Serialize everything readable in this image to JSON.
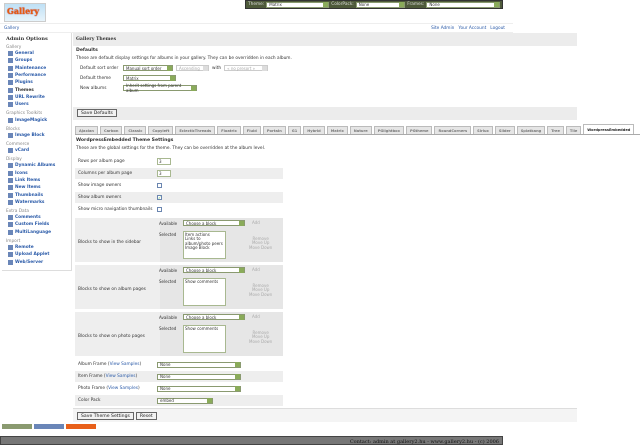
{
  "logo": "Gallery",
  "topbar": {
    "theme_label": "Theme:",
    "theme_value": "Matrix",
    "colorpack_label": "ColorPack:",
    "colorpack_value": "None",
    "frames_label": "Frames:",
    "frames_value": "None"
  },
  "breadcrumb": "Gallery",
  "toplinks": [
    "Site Admin",
    "Your Account",
    "Logout"
  ],
  "sidebar": {
    "title": "Admin Options",
    "groups": [
      {
        "name": "Gallery",
        "items": [
          "General",
          "Groups",
          "Maintenance",
          "Performance",
          "Plugins",
          "Themes",
          "URL Rewrite",
          "Users"
        ]
      },
      {
        "name": "Graphics Toolkits",
        "items": [
          "ImageMagick"
        ]
      },
      {
        "name": "Blocks",
        "items": [
          "Image Block"
        ]
      },
      {
        "name": "Commerce",
        "items": [
          "vCard"
        ]
      },
      {
        "name": "Display",
        "items": [
          "Dynamic Albums",
          "Icons",
          "Link Items",
          "New Items",
          "Thumbnails",
          "Watermarks"
        ]
      },
      {
        "name": "Extra Data",
        "items": [
          "Comments",
          "Custom Fields",
          "MultiLanguage"
        ]
      },
      {
        "name": "Import",
        "items": [
          "Remote",
          "Upload Applet",
          "Web/Server"
        ]
      }
    ],
    "current": "Themes"
  },
  "header": "Gallery Themes",
  "defaults": {
    "title": "Defaults",
    "desc": "These are default display settings for albums in your gallery. They can be overridden in each album.",
    "sort_label": "Default sort order",
    "sort_value": "Manual sort order",
    "sort_dir": "Ascending",
    "with_label": "with",
    "presort": "« no presort »",
    "theme_label": "Default theme",
    "theme_value": "Matrix",
    "new_label": "New albums",
    "new_value": "Inherit settings from parent album"
  },
  "save_defaults": "Save Defaults",
  "tabs": [
    "Ajaxian",
    "Carbon",
    "Classic",
    "Copyleft",
    "EclecticThreads",
    "Floatrix",
    "Fluid",
    "PortaIn",
    "G1",
    "Hybrid",
    "Matrix",
    "Nature",
    "PGlightbox",
    "PGtheme",
    "RoundCorners",
    "Siriux",
    "Slider",
    "Splatkang",
    "Tree",
    "Tile",
    "WordpressEmbedded"
  ],
  "active_tab": "WordpressEmbedded",
  "settings": {
    "title": "WordpressEmbedded Theme Settings",
    "desc": "These are the global settings for the theme. They can be overridden at the album level.",
    "rows_label": "Rows per album page",
    "rows_value": "3",
    "cols_label": "Columns per album page",
    "cols_value": "3",
    "image_owners": "Show image owners",
    "image_owners_checked": false,
    "album_owners": "Show album owners",
    "album_owners_checked": true,
    "micro": "Show micro navigation thumbnails",
    "micro_checked": false,
    "available": "Available",
    "selected": "Selected",
    "choose": "Choose a block",
    "add": "Add",
    "remove": "Remove",
    "up": "Move Up",
    "down": "Move Down",
    "sidebar_blocks": {
      "label": "Blocks to show in the sidebar",
      "items": [
        "Item actions",
        "Links to album/photo peers",
        "Image Block"
      ]
    },
    "album_blocks": {
      "label": "Blocks to show on album pages",
      "items": [
        "Show comments"
      ]
    },
    "photo_blocks": {
      "label": "Blocks to show on photo pages",
      "items": [
        "Show comments"
      ]
    },
    "view_samples": "View Samples",
    "album_frame": "Album Frame",
    "item_frame": "Item Frame",
    "photo_frame": "Photo Frame",
    "frame_value": "None",
    "color_pack": "Color Pack",
    "color_pack_value": "embed"
  },
  "save_theme": "Save Theme Settings",
  "reset": "Reset",
  "footer": "Contact: admin at gallery2.hu - www.gallery2.hu - (c) 2006"
}
